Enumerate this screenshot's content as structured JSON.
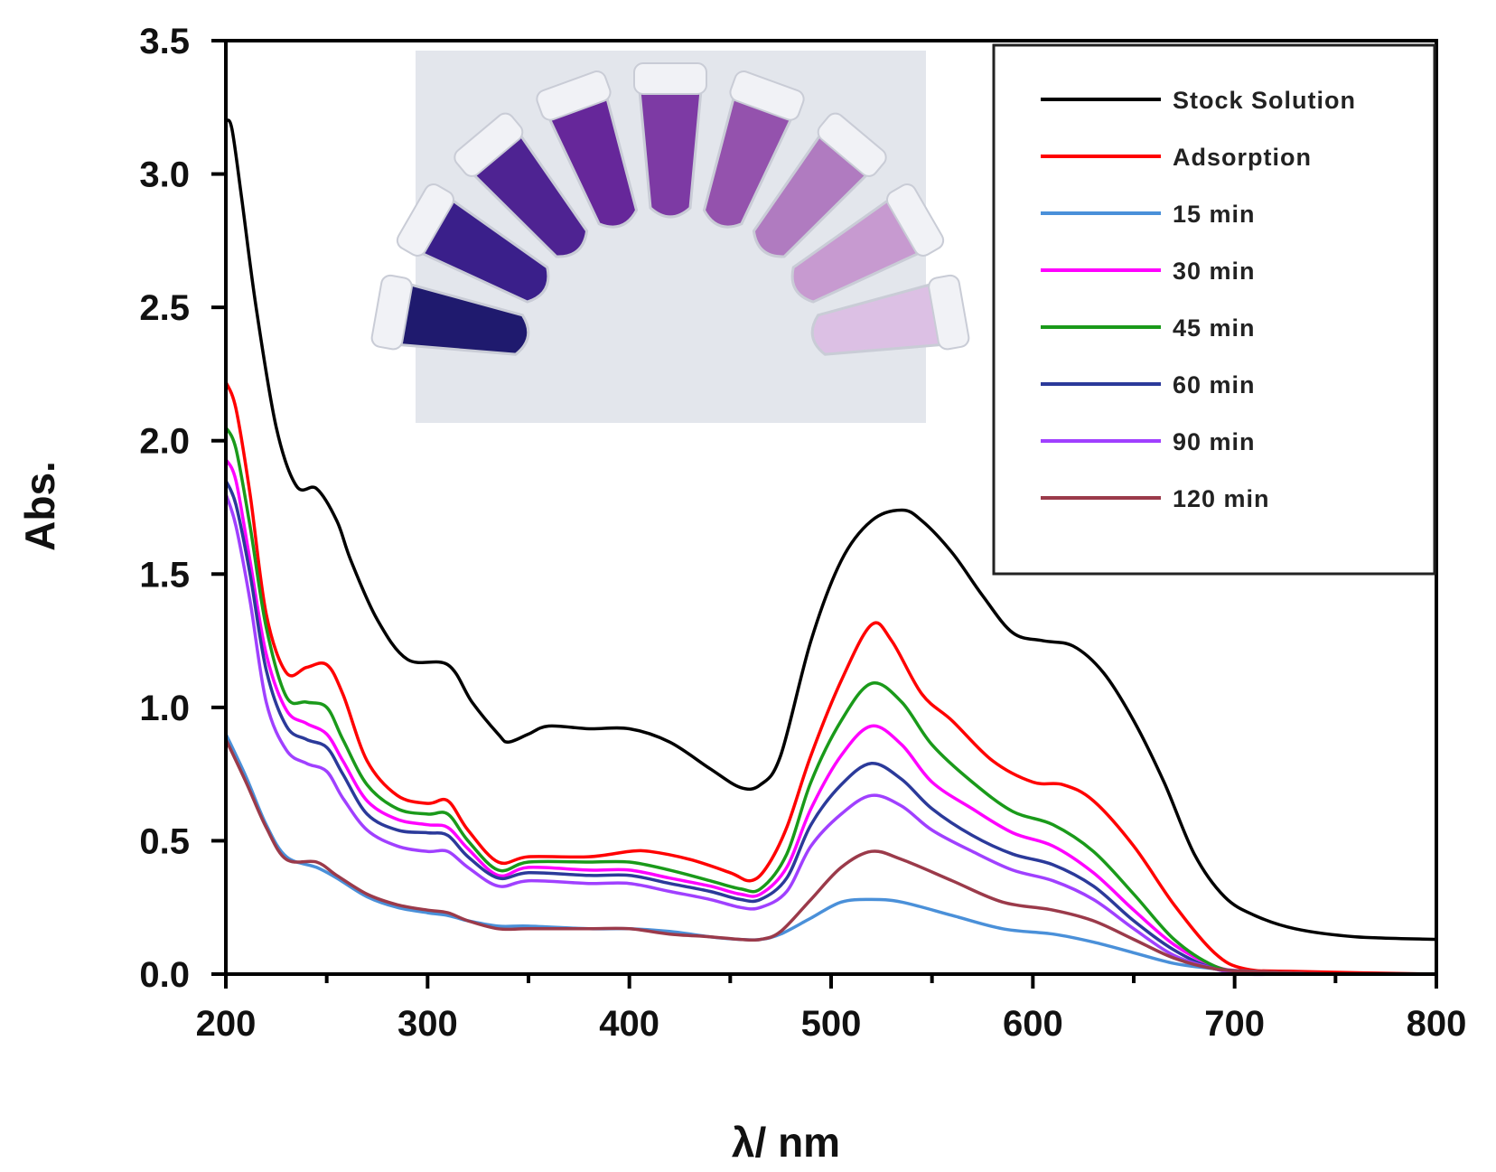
{
  "chart_data": {
    "type": "line",
    "title": "",
    "xlabel": "λ/ nm",
    "ylabel": "Abs.",
    "xlim": [
      200,
      800
    ],
    "ylim": [
      0,
      3.5
    ],
    "xticks": [
      200,
      300,
      400,
      500,
      600,
      700,
      800
    ],
    "xtick_labels": [
      "200",
      "300",
      "400",
      "500",
      "600",
      "700",
      "800"
    ],
    "yticks": [
      0,
      0.5,
      1.0,
      1.5,
      2.0,
      2.5,
      3.0,
      3.5
    ],
    "ytick_labels": [
      "0.0",
      "0.5",
      "1.0",
      "1.5",
      "2.0",
      "2.5",
      "3.0",
      "3.5"
    ],
    "legend_position": "top-right",
    "inset": "photo of a fan of vials with purple solutions fading from dark to light",
    "series": [
      {
        "name": "Stock Solution",
        "color": "#000000",
        "x": [
          200,
          203,
          208,
          215,
          225,
          235,
          245,
          255,
          262,
          275,
          290,
          310,
          322,
          335,
          340,
          350,
          360,
          380,
          400,
          420,
          440,
          455,
          465,
          475,
          490,
          505,
          520,
          535,
          545,
          560,
          575,
          590,
          605,
          620,
          635,
          650,
          665,
          680,
          695,
          710,
          730,
          760,
          800
        ],
        "y": [
          3.2,
          3.17,
          2.9,
          2.5,
          2.05,
          1.83,
          1.82,
          1.7,
          1.55,
          1.33,
          1.18,
          1.16,
          1.02,
          0.9,
          0.87,
          0.9,
          0.93,
          0.92,
          0.92,
          0.87,
          0.77,
          0.7,
          0.71,
          0.82,
          1.25,
          1.55,
          1.7,
          1.74,
          1.7,
          1.58,
          1.42,
          1.28,
          1.25,
          1.23,
          1.13,
          0.95,
          0.72,
          0.45,
          0.29,
          0.22,
          0.17,
          0.14,
          0.13
        ]
      },
      {
        "name": "Adsorption",
        "color": "#ff0000",
        "x": [
          200,
          205,
          212,
          220,
          230,
          240,
          250,
          258,
          270,
          285,
          300,
          310,
          320,
          335,
          350,
          380,
          400,
          410,
          430,
          450,
          460,
          468,
          478,
          490,
          505,
          520,
          530,
          545,
          560,
          580,
          600,
          615,
          630,
          650,
          670,
          690,
          705,
          730,
          800
        ],
        "y": [
          2.22,
          2.12,
          1.8,
          1.35,
          1.13,
          1.15,
          1.16,
          1.05,
          0.8,
          0.67,
          0.64,
          0.65,
          0.54,
          0.42,
          0.44,
          0.44,
          0.46,
          0.46,
          0.43,
          0.38,
          0.35,
          0.4,
          0.55,
          0.82,
          1.1,
          1.31,
          1.25,
          1.05,
          0.95,
          0.8,
          0.72,
          0.71,
          0.65,
          0.48,
          0.26,
          0.08,
          0.02,
          0.01,
          0.0
        ]
      },
      {
        "name": "15 min",
        "color": "#4a90d9",
        "x": [
          200,
          210,
          220,
          230,
          245,
          255,
          270,
          285,
          300,
          310,
          320,
          335,
          350,
          380,
          400,
          420,
          440,
          455,
          465,
          475,
          490,
          505,
          520,
          535,
          560,
          585,
          610,
          630,
          650,
          670,
          690,
          710,
          750,
          800
        ],
        "y": [
          0.9,
          0.74,
          0.56,
          0.44,
          0.4,
          0.36,
          0.29,
          0.25,
          0.23,
          0.22,
          0.2,
          0.18,
          0.18,
          0.17,
          0.17,
          0.16,
          0.14,
          0.13,
          0.13,
          0.15,
          0.21,
          0.27,
          0.28,
          0.27,
          0.22,
          0.17,
          0.15,
          0.12,
          0.08,
          0.04,
          0.02,
          0.01,
          0.0,
          0.0
        ]
      },
      {
        "name": "30 min",
        "color": "#ff00ff",
        "x": [
          200,
          205,
          212,
          220,
          230,
          240,
          250,
          258,
          270,
          285,
          300,
          310,
          320,
          335,
          350,
          380,
          400,
          420,
          440,
          455,
          465,
          478,
          490,
          505,
          520,
          535,
          550,
          570,
          590,
          610,
          630,
          650,
          670,
          690,
          705,
          730,
          800
        ],
        "y": [
          1.93,
          1.85,
          1.55,
          1.2,
          0.99,
          0.94,
          0.9,
          0.8,
          0.65,
          0.58,
          0.56,
          0.55,
          0.47,
          0.37,
          0.4,
          0.39,
          0.39,
          0.36,
          0.33,
          0.3,
          0.3,
          0.4,
          0.62,
          0.82,
          0.93,
          0.86,
          0.72,
          0.62,
          0.53,
          0.48,
          0.38,
          0.24,
          0.11,
          0.03,
          0.01,
          0.0,
          0.0
        ]
      },
      {
        "name": "45 min",
        "color": "#1a9a1a",
        "x": [
          200,
          205,
          212,
          220,
          230,
          240,
          250,
          258,
          270,
          285,
          300,
          310,
          320,
          335,
          350,
          380,
          400,
          420,
          440,
          455,
          465,
          478,
          490,
          505,
          520,
          535,
          550,
          570,
          590,
          610,
          630,
          650,
          670,
          690,
          705,
          730,
          800
        ],
        "y": [
          2.05,
          1.97,
          1.68,
          1.3,
          1.04,
          1.02,
          1.0,
          0.88,
          0.71,
          0.62,
          0.6,
          0.6,
          0.5,
          0.39,
          0.42,
          0.42,
          0.42,
          0.39,
          0.35,
          0.32,
          0.32,
          0.45,
          0.72,
          0.95,
          1.09,
          1.02,
          0.86,
          0.72,
          0.61,
          0.56,
          0.46,
          0.3,
          0.13,
          0.03,
          0.01,
          0.0,
          0.0
        ]
      },
      {
        "name": "60 min",
        "color": "#2b3a9a",
        "x": [
          200,
          205,
          212,
          220,
          230,
          240,
          250,
          258,
          270,
          285,
          300,
          310,
          320,
          335,
          350,
          380,
          400,
          420,
          440,
          455,
          465,
          478,
          490,
          505,
          520,
          535,
          550,
          570,
          590,
          610,
          630,
          650,
          670,
          690,
          705,
          730,
          800
        ],
        "y": [
          1.85,
          1.76,
          1.5,
          1.14,
          0.93,
          0.88,
          0.85,
          0.75,
          0.6,
          0.54,
          0.53,
          0.52,
          0.44,
          0.36,
          0.38,
          0.37,
          0.37,
          0.34,
          0.31,
          0.28,
          0.28,
          0.36,
          0.56,
          0.71,
          0.79,
          0.73,
          0.62,
          0.52,
          0.45,
          0.41,
          0.33,
          0.2,
          0.09,
          0.02,
          0.01,
          0.0,
          0.0
        ]
      },
      {
        "name": "90 min",
        "color": "#a040ff",
        "x": [
          200,
          205,
          212,
          220,
          230,
          240,
          250,
          258,
          270,
          285,
          300,
          310,
          320,
          335,
          350,
          380,
          400,
          420,
          440,
          455,
          465,
          478,
          490,
          505,
          520,
          535,
          550,
          570,
          590,
          610,
          630,
          650,
          670,
          690,
          705,
          730,
          800
        ],
        "y": [
          1.8,
          1.68,
          1.4,
          1.02,
          0.84,
          0.79,
          0.76,
          0.66,
          0.54,
          0.48,
          0.46,
          0.46,
          0.4,
          0.33,
          0.35,
          0.34,
          0.34,
          0.31,
          0.28,
          0.25,
          0.25,
          0.31,
          0.48,
          0.6,
          0.67,
          0.63,
          0.54,
          0.46,
          0.39,
          0.35,
          0.28,
          0.17,
          0.07,
          0.02,
          0.0,
          0.0,
          0.0
        ]
      },
      {
        "name": "120 min",
        "color": "#9b3a4a",
        "x": [
          200,
          210,
          220,
          230,
          245,
          255,
          270,
          285,
          300,
          310,
          320,
          335,
          350,
          380,
          400,
          420,
          440,
          455,
          465,
          475,
          490,
          505,
          520,
          535,
          560,
          585,
          610,
          630,
          650,
          670,
          690,
          710,
          750,
          800
        ],
        "y": [
          0.88,
          0.72,
          0.55,
          0.43,
          0.42,
          0.37,
          0.3,
          0.26,
          0.24,
          0.23,
          0.2,
          0.17,
          0.17,
          0.17,
          0.17,
          0.15,
          0.14,
          0.13,
          0.13,
          0.16,
          0.28,
          0.4,
          0.46,
          0.43,
          0.35,
          0.27,
          0.24,
          0.2,
          0.13,
          0.06,
          0.02,
          0.01,
          0.0,
          0.0
        ]
      }
    ]
  }
}
